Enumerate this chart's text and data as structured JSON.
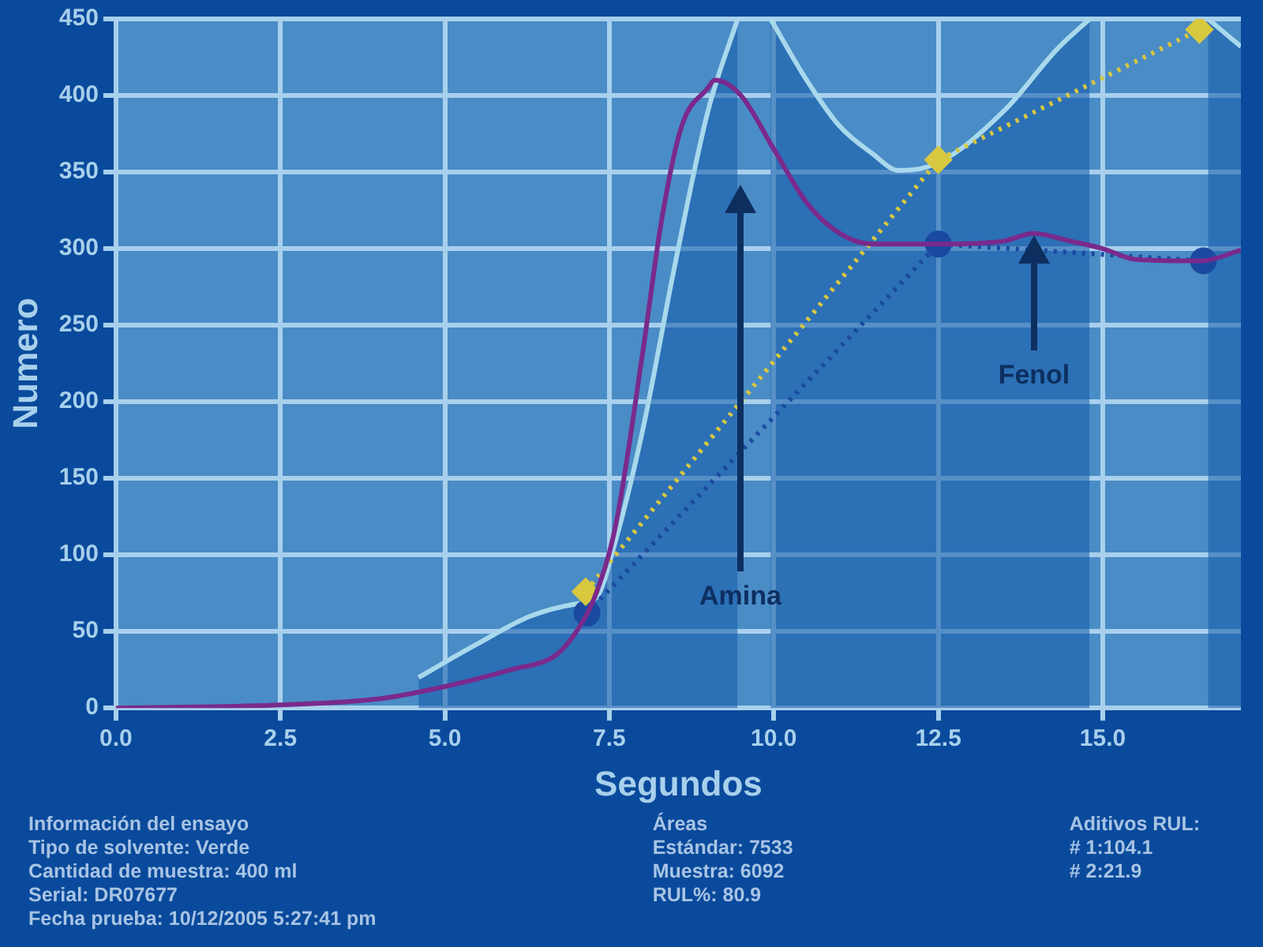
{
  "chart_data": {
    "type": "line",
    "xlabel": "Segundos",
    "ylabel": "Numero",
    "xlim": [
      0,
      17.1
    ],
    "ylim": [
      0,
      450
    ],
    "xticks": [
      {
        "value": 0,
        "label": "0.0"
      },
      {
        "value": 2.5,
        "label": "2.5"
      },
      {
        "value": 5,
        "label": "5.0"
      },
      {
        "value": 7.5,
        "label": "7.5"
      },
      {
        "value": 10,
        "label": "10.0"
      },
      {
        "value": 12.5,
        "label": "12.5"
      },
      {
        "value": 15,
        "label": "15.0"
      }
    ],
    "yticks": [
      0,
      50,
      100,
      150,
      200,
      250,
      300,
      350,
      400,
      450
    ],
    "grid": true,
    "legend": false,
    "series": [
      {
        "type": "area",
        "color": "#a8d8ec",
        "marker": "none",
        "line_style": "solid",
        "x": [
          4.6,
          5.5,
          6.3,
          7.0,
          7.3,
          7.6,
          8.0,
          8.5,
          9.0,
          9.45,
          9.7,
          9.95,
          10.5,
          11.0,
          11.5,
          11.9,
          12.5,
          13.5,
          14.3,
          14.8,
          15.8,
          16.6,
          17.1
        ],
        "values": [
          20,
          42,
          60,
          68,
          72,
          110,
          180,
          290,
          390,
          450,
          null,
          450,
          410,
          380,
          362,
          351,
          356,
          390,
          430,
          450,
          null,
          450,
          432
        ]
      },
      {
        "type": "line",
        "color": "#7a2a8c",
        "marker": "none",
        "line_style": "solid",
        "x": [
          0,
          2.5,
          4,
          5,
          6,
          6.7,
          7,
          7.3,
          7.6,
          8,
          8.3,
          8.6,
          9,
          9.1,
          9.5,
          10,
          10.5,
          11,
          11.5,
          12.5,
          13.5,
          13.95,
          14.5,
          15,
          15.5,
          16.5,
          17.1
        ],
        "values": [
          0,
          2,
          6,
          14,
          25,
          35,
          50,
          75,
          120,
          230,
          320,
          380,
          405,
          410,
          400,
          365,
          330,
          310,
          303,
          303,
          305,
          310,
          305,
          300,
          293,
          292,
          299
        ]
      },
      {
        "type": "line",
        "color": "#d8c840",
        "marker": "diamond",
        "line_style": "dotted",
        "x": [
          7.14,
          12.5,
          16.47
        ],
        "values": [
          76,
          358,
          443
        ]
      },
      {
        "type": "line",
        "color": "#1a4aa0",
        "marker": "circle",
        "line_style": "dotted",
        "x": [
          7.16,
          12.5,
          16.53
        ],
        "values": [
          62,
          303,
          292
        ]
      }
    ],
    "annotations": [
      "Amina",
      "Fenol",
      "Información del ensayo\nTipo de solvente: Verde\nCantidad de muestra: 400 ml\nSerial: DR07677\nFecha prueba: 10/12/2005 5:27:41 pm",
      "Áreas\nEstándar: 7533\nMuestra: 6092\nRUL%: 80.9",
      "Aditivos RUL:\n# 1:104.1\n# 2:21.9"
    ]
  }
}
